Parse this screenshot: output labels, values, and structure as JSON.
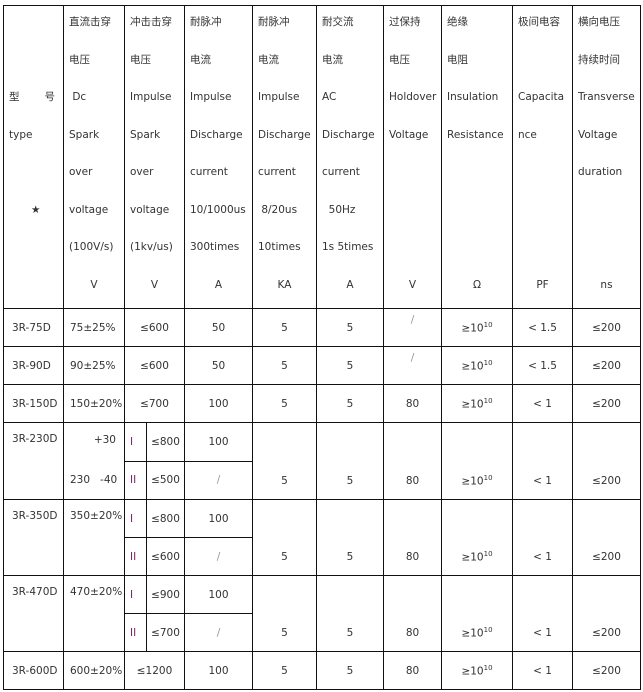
{
  "header": {
    "type_col": {
      "label": "型 号",
      "sub": "type",
      "mark": "★"
    },
    "columns": [
      {
        "lines": [
          "直流击穿",
          "电压",
          " Dc",
          "Spark",
          "over",
          "voltage",
          "(100V/s)"
        ],
        "unit": "V"
      },
      {
        "lines": [
          "冲击击穿",
          "电压",
          "Impulse",
          "Spark",
          "over",
          "voltage",
          "(1kv/us)"
        ],
        "unit": "V"
      },
      {
        "lines": [
          "耐脉冲",
          "电流",
          "Impulse",
          "Discharge",
          "current",
          "10/1000us",
          "300times"
        ],
        "unit": "A"
      },
      {
        "lines": [
          "耐脉冲",
          "电流",
          "Impulse",
          "Discharge",
          "current",
          " 8/20us",
          "10times"
        ],
        "unit": "KA"
      },
      {
        "lines": [
          "耐交流",
          "电流",
          "AC",
          "Discharge",
          "current",
          "  50Hz",
          "1s 5times"
        ],
        "unit": "A"
      },
      {
        "lines": [
          "过保持",
          "电压",
          "Holdover",
          "Voltage",
          "",
          "",
          ""
        ],
        "unit": "V"
      },
      {
        "lines": [
          "绝缘",
          "电阻",
          "Insulation",
          "Resistance",
          "",
          "",
          ""
        ],
        "unit": "Ω"
      },
      {
        "lines": [
          "极间电容",
          "",
          "Capacita",
          "nce",
          "",
          "",
          ""
        ],
        "unit": "PF"
      },
      {
        "lines": [
          "横向电压",
          "持续时间",
          "Transverse",
          "Voltage",
          "duration",
          "",
          ""
        ],
        "unit": "ns"
      }
    ]
  },
  "rows": [
    {
      "type": "3R-75D",
      "dc": "75±25%",
      "impulse": "≤600",
      "a1000": "50",
      "ka": "5",
      "ac": "5",
      "holdover": "/",
      "ins_base": "≥10",
      "ins_exp": "10",
      "cap": "< 1.5",
      "dur": "≤200"
    },
    {
      "type": "3R-90D",
      "dc": "90±25%",
      "impulse": "≤600",
      "a1000": "50",
      "ka": "5",
      "ac": "5",
      "holdover": "/",
      "ins_base": "≥10",
      "ins_exp": "10",
      "cap": "< 1.5",
      "dur": "≤200"
    },
    {
      "type": "3R-150D",
      "dc": "150±20%",
      "impulse": "≤700",
      "a1000": "100",
      "ka": "5",
      "ac": "5",
      "holdover": "80",
      "ins_base": "≥10",
      "ins_exp": "10",
      "cap": "< 1",
      "dur": "≤200"
    },
    {
      "type": "3R-230D",
      "dc_top": "+30",
      "dc_bottom": "230   -40",
      "grades": [
        {
          "grade": "I",
          "impulse": "≤800",
          "a1000": "100"
        },
        {
          "grade": "II",
          "impulse": "≤500",
          "a1000": "/"
        }
      ],
      "ka": "5",
      "ac": "5",
      "holdover": "80",
      "ins_base": "≥10",
      "ins_exp": "10",
      "cap": "< 1",
      "dur": "≤200"
    },
    {
      "type": "3R-350D",
      "dc": "350±20%",
      "grades": [
        {
          "grade": "I",
          "impulse": "≤800",
          "a1000": "100"
        },
        {
          "grade": "II",
          "impulse": "≤600",
          "a1000": "/"
        }
      ],
      "ka": "5",
      "ac": "5",
      "holdover": "80",
      "ins_base": "≥10",
      "ins_exp": "10",
      "cap": "< 1",
      "dur": "≤200"
    },
    {
      "type": "3R-470D",
      "dc": "470±20%",
      "grades": [
        {
          "grade": "I",
          "impulse": "≤900",
          "a1000": "100"
        },
        {
          "grade": "II",
          "impulse": "≤700",
          "a1000": "/"
        }
      ],
      "ka": "5",
      "ac": "5",
      "holdover": "80",
      "ins_base": "≥10",
      "ins_exp": "10",
      "cap": "< 1",
      "dur": "≤200"
    },
    {
      "type": "3R-600D",
      "dc": "600±20%",
      "impulse": "≤1200",
      "a1000": "100",
      "ka": "5",
      "ac": "5",
      "holdover": "80",
      "ins_base": "≥10",
      "ins_exp": "10",
      "cap": "< 1",
      "dur": "≤200"
    }
  ],
  "colors": {
    "grade_text": "#7a1f6e",
    "border": "#111111",
    "text": "#333333"
  }
}
